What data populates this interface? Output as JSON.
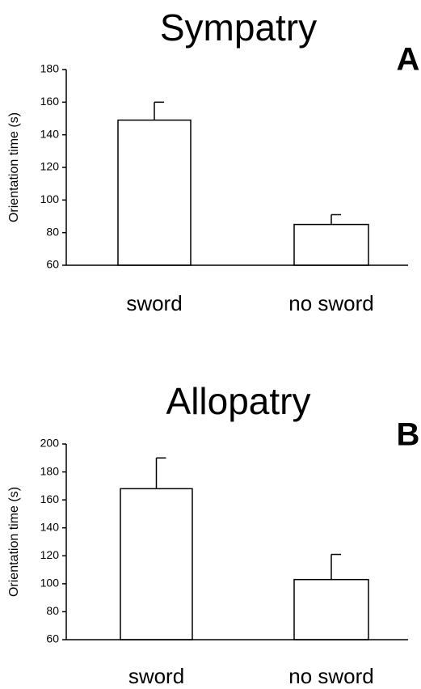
{
  "chart_data": [
    {
      "type": "bar",
      "title": "Sympatry",
      "panel": "A",
      "y_label": "Orientation time (s)",
      "categories": [
        "sword",
        "no sword"
      ],
      "values": [
        149,
        85
      ],
      "errors": [
        11,
        6
      ],
      "color": "#ffffff",
      "ylim": [
        60,
        180
      ],
      "yticks": [
        60,
        80,
        100,
        120,
        140,
        160,
        180
      ]
    },
    {
      "type": "bar",
      "title": "Allopatry",
      "panel": "B",
      "y_label": "Orientation time (s)",
      "categories": [
        "sword",
        "no sword"
      ],
      "values": [
        168,
        103
      ],
      "errors": [
        22,
        18
      ],
      "color": "#ffffff",
      "ylim": [
        60,
        200
      ],
      "yticks": [
        60,
        80,
        100,
        120,
        140,
        160,
        180,
        200
      ]
    }
  ]
}
